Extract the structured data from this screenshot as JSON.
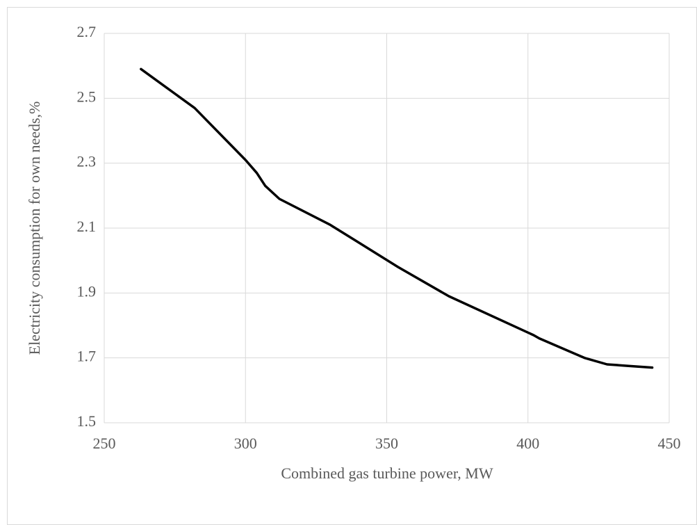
{
  "chart_data": {
    "type": "line",
    "x_label": "Combined gas turbine power, MW",
    "y_label": "Electricity consumption for own needs,%",
    "x": [
      263,
      282,
      300,
      304,
      307,
      312,
      330,
      354,
      372,
      402,
      404,
      420,
      428,
      436,
      444
    ],
    "series": [
      {
        "color": "#000000",
        "values": [
          2.59,
          2.47,
          2.31,
          2.27,
          2.23,
          2.19,
          2.11,
          1.98,
          1.89,
          1.77,
          1.76,
          1.7,
          1.68,
          1.675,
          1.67
        ]
      }
    ],
    "xlim": [
      250,
      450
    ],
    "xticks": [
      250,
      300,
      350,
      400,
      450
    ],
    "ylim": [
      1.5,
      2.7
    ],
    "yticks": [
      1.5,
      1.7,
      1.9,
      2.1,
      2.3,
      2.5,
      2.7
    ],
    "grid": true
  }
}
